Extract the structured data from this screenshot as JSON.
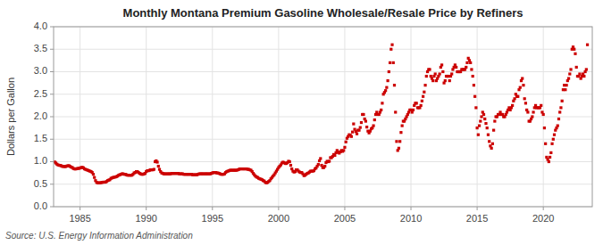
{
  "chart_data": {
    "type": "scatter",
    "title": "Monthly Montana Premium Gasoline Wholesale/Resale Price by Refiners",
    "y_label": "Dollars per Gallon",
    "annotations": [
      "Source: U.S. Energy Information Administration"
    ],
    "xlim": [
      1983.0,
      2023.7
    ],
    "ylim": [
      0.0,
      4.0
    ],
    "xticks": [
      1985,
      1990,
      1995,
      2000,
      2005,
      2010,
      2015,
      2020
    ],
    "yticks": [
      {
        "value": 0.0,
        "label": "0.0"
      },
      0.5,
      {
        "value": 1.0,
        "label": "1.0"
      },
      1.5,
      {
        "value": 2.0,
        "label": "2.0"
      },
      2.5,
      {
        "value": 3.0,
        "label": "3.0"
      },
      3.5,
      {
        "value": 4.0,
        "label": "4.0"
      }
    ],
    "grid": true,
    "color": "#cc0000",
    "marker": "square",
    "x": [
      1983.083,
      1983.167,
      1983.25,
      1983.333,
      1983.417,
      1983.5,
      1983.583,
      1983.667,
      1983.75,
      1983.833,
      1983.917,
      1984.0,
      1984.083,
      1984.167,
      1984.25,
      1984.333,
      1984.417,
      1984.5,
      1984.583,
      1984.667,
      1984.75,
      1984.833,
      1984.917,
      1985.0,
      1985.083,
      1985.167,
      1985.25,
      1985.333,
      1985.417,
      1985.5,
      1985.583,
      1985.667,
      1985.75,
      1985.833,
      1985.917,
      1986.0,
      1986.083,
      1986.167,
      1986.25,
      1986.333,
      1986.417,
      1986.5,
      1986.583,
      1986.667,
      1986.75,
      1986.833,
      1986.917,
      1987.0,
      1987.083,
      1987.167,
      1987.25,
      1987.333,
      1987.417,
      1987.5,
      1987.583,
      1987.667,
      1987.75,
      1987.833,
      1987.917,
      1988.0,
      1988.083,
      1988.167,
      1988.25,
      1988.333,
      1988.417,
      1988.5,
      1988.583,
      1988.667,
      1988.75,
      1988.833,
      1988.917,
      1989.0,
      1989.083,
      1989.167,
      1989.25,
      1989.333,
      1989.417,
      1989.5,
      1989.583,
      1989.667,
      1989.75,
      1989.833,
      1989.917,
      1990.0,
      1990.083,
      1990.167,
      1990.25,
      1990.333,
      1990.417,
      1990.5,
      1990.583,
      1990.667,
      1990.75,
      1990.833,
      1990.917,
      1991.0,
      1991.083,
      1991.167,
      1991.25,
      1991.333,
      1991.417,
      1991.5,
      1991.583,
      1991.667,
      1991.75,
      1991.833,
      1991.917,
      1992.0,
      1992.083,
      1992.167,
      1992.25,
      1992.333,
      1992.417,
      1992.5,
      1992.583,
      1992.667,
      1992.75,
      1992.833,
      1992.917,
      1993.0,
      1993.083,
      1993.167,
      1993.25,
      1993.333,
      1993.417,
      1993.5,
      1993.583,
      1993.667,
      1993.75,
      1993.833,
      1993.917,
      1994.0,
      1994.083,
      1994.167,
      1994.25,
      1994.333,
      1994.417,
      1994.5,
      1994.583,
      1994.667,
      1994.75,
      1994.833,
      1994.917,
      1995.0,
      1995.083,
      1995.167,
      1995.25,
      1995.333,
      1995.417,
      1995.5,
      1995.583,
      1995.667,
      1995.75,
      1995.833,
      1995.917,
      1996.0,
      1996.083,
      1996.167,
      1996.25,
      1996.333,
      1996.417,
      1996.5,
      1996.583,
      1996.667,
      1996.75,
      1996.833,
      1996.917,
      1997.0,
      1997.083,
      1997.167,
      1997.25,
      1997.333,
      1997.417,
      1997.5,
      1997.583,
      1997.667,
      1997.75,
      1997.833,
      1997.917,
      1998.0,
      1998.083,
      1998.167,
      1998.25,
      1998.333,
      1998.417,
      1998.5,
      1998.583,
      1998.667,
      1998.75,
      1998.833,
      1998.917,
      1999.0,
      1999.083,
      1999.167,
      1999.25,
      1999.333,
      1999.417,
      1999.5,
      1999.583,
      1999.667,
      1999.75,
      1999.833,
      1999.917,
      2000.0,
      2000.083,
      2000.167,
      2000.25,
      2000.333,
      2000.417,
      2000.5,
      2000.583,
      2000.667,
      2000.75,
      2000.833,
      2000.917,
      2001.0,
      2001.083,
      2001.167,
      2001.25,
      2001.333,
      2001.417,
      2001.5,
      2001.583,
      2001.667,
      2001.75,
      2001.833,
      2001.917,
      2002.0,
      2002.083,
      2002.167,
      2002.25,
      2002.333,
      2002.417,
      2002.5,
      2002.583,
      2002.667,
      2002.75,
      2002.833,
      2002.917,
      2003.0,
      2003.083,
      2003.167,
      2003.25,
      2003.333,
      2003.417,
      2003.5,
      2003.583,
      2003.667,
      2003.75,
      2003.833,
      2003.917,
      2004.0,
      2004.083,
      2004.167,
      2004.25,
      2004.333,
      2004.417,
      2004.5,
      2004.583,
      2004.667,
      2004.75,
      2004.833,
      2004.917,
      2005.0,
      2005.083,
      2005.167,
      2005.25,
      2005.333,
      2005.417,
      2005.5,
      2005.583,
      2005.667,
      2005.75,
      2005.833,
      2005.917,
      2006.0,
      2006.083,
      2006.167,
      2006.25,
      2006.333,
      2006.417,
      2006.5,
      2006.583,
      2006.667,
      2006.75,
      2006.833,
      2006.917,
      2007.0,
      2007.083,
      2007.167,
      2007.25,
      2007.333,
      2007.417,
      2007.5,
      2007.583,
      2007.667,
      2007.75,
      2007.833,
      2007.917,
      2008.0,
      2008.083,
      2008.167,
      2008.25,
      2008.333,
      2008.417,
      2008.5,
      2008.583,
      2008.667,
      2008.75,
      2008.833,
      2008.917,
      2009.0,
      2009.083,
      2009.167,
      2009.25,
      2009.333,
      2009.417,
      2009.5,
      2009.583,
      2009.667,
      2009.75,
      2009.833,
      2009.917,
      2010.0,
      2010.083,
      2010.167,
      2010.25,
      2010.333,
      2010.417,
      2010.5,
      2010.583,
      2010.667,
      2010.75,
      2010.833,
      2010.917,
      2011.0,
      2011.083,
      2011.167,
      2011.25,
      2011.333,
      2011.417,
      2011.5,
      2011.583,
      2011.667,
      2011.75,
      2011.833,
      2011.917,
      2012.0,
      2012.083,
      2012.167,
      2012.25,
      2012.333,
      2012.417,
      2012.5,
      2012.583,
      2012.667,
      2012.75,
      2012.833,
      2012.917,
      2013.0,
      2013.083,
      2013.167,
      2013.25,
      2013.333,
      2013.417,
      2013.5,
      2013.583,
      2013.667,
      2013.75,
      2013.833,
      2013.917,
      2014.0,
      2014.083,
      2014.167,
      2014.25,
      2014.333,
      2014.417,
      2014.5,
      2014.583,
      2014.667,
      2014.75,
      2014.833,
      2014.917,
      2015.0,
      2015.083,
      2015.167,
      2015.25,
      2015.333,
      2015.417,
      2015.5,
      2015.583,
      2015.667,
      2015.75,
      2015.833,
      2015.917,
      2016.0,
      2016.083,
      2016.167,
      2016.25,
      2016.333,
      2016.417,
      2016.5,
      2016.583,
      2016.667,
      2016.75,
      2016.833,
      2016.917,
      2017.0,
      2017.083,
      2017.167,
      2017.25,
      2017.333,
      2017.417,
      2017.5,
      2017.583,
      2017.667,
      2017.75,
      2017.833,
      2017.917,
      2018.0,
      2018.083,
      2018.167,
      2018.25,
      2018.333,
      2018.417,
      2018.5,
      2018.583,
      2018.667,
      2018.75,
      2018.833,
      2018.917,
      2019.0,
      2019.083,
      2019.167,
      2019.25,
      2019.333,
      2019.417,
      2019.5,
      2019.583,
      2019.667,
      2019.75,
      2019.833,
      2019.917,
      2020.0,
      2020.083,
      2020.167,
      2020.25,
      2020.333,
      2020.417,
      2020.5,
      2020.583,
      2020.667,
      2020.75,
      2020.833,
      2020.917,
      2021.0,
      2021.083,
      2021.167,
      2021.25,
      2021.333,
      2021.417,
      2021.5,
      2021.583,
      2021.667,
      2021.75,
      2021.833,
      2021.917,
      2022.0,
      2022.083,
      2022.167,
      2022.25,
      2022.333,
      2022.417,
      2022.5,
      2022.583,
      2022.667,
      2022.75,
      2022.833,
      2022.917,
      2023.0,
      2023.083,
      2023.167,
      2023.25,
      2023.333
    ],
    "values": [
      0.994,
      0.971,
      0.946,
      0.929,
      0.92,
      0.917,
      0.91,
      0.895,
      0.895,
      0.893,
      0.892,
      0.903,
      0.91,
      0.91,
      0.895,
      0.88,
      0.87,
      0.848,
      0.84,
      0.838,
      0.845,
      0.85,
      0.853,
      0.86,
      0.87,
      0.875,
      0.865,
      0.84,
      0.83,
      0.82,
      0.81,
      0.8,
      0.79,
      0.78,
      0.76,
      0.72,
      0.65,
      0.58,
      0.54,
      0.53,
      0.53,
      0.53,
      0.535,
      0.54,
      0.545,
      0.545,
      0.545,
      0.56,
      0.58,
      0.59,
      0.6,
      0.63,
      0.64,
      0.65,
      0.655,
      0.66,
      0.67,
      0.68,
      0.7,
      0.71,
      0.72,
      0.73,
      0.73,
      0.72,
      0.72,
      0.71,
      0.7,
      0.7,
      0.7,
      0.7,
      0.7,
      0.72,
      0.75,
      0.76,
      0.78,
      0.78,
      0.76,
      0.74,
      0.73,
      0.72,
      0.72,
      0.73,
      0.74,
      0.78,
      0.8,
      0.8,
      0.81,
      0.82,
      0.82,
      0.82,
      0.83,
      1.0,
      1.02,
      0.99,
      0.9,
      0.83,
      0.78,
      0.75,
      0.74,
      0.73,
      0.73,
      0.73,
      0.73,
      0.73,
      0.73,
      0.73,
      0.74,
      0.74,
      0.74,
      0.74,
      0.74,
      0.74,
      0.74,
      0.73,
      0.73,
      0.73,
      0.73,
      0.72,
      0.72,
      0.72,
      0.72,
      0.72,
      0.72,
      0.72,
      0.72,
      0.71,
      0.71,
      0.71,
      0.71,
      0.71,
      0.72,
      0.73,
      0.73,
      0.73,
      0.73,
      0.73,
      0.73,
      0.73,
      0.73,
      0.73,
      0.73,
      0.73,
      0.74,
      0.75,
      0.76,
      0.76,
      0.76,
      0.75,
      0.75,
      0.74,
      0.73,
      0.72,
      0.72,
      0.72,
      0.73,
      0.76,
      0.78,
      0.79,
      0.8,
      0.81,
      0.81,
      0.81,
      0.81,
      0.81,
      0.81,
      0.81,
      0.82,
      0.83,
      0.84,
      0.84,
      0.84,
      0.84,
      0.84,
      0.84,
      0.84,
      0.83,
      0.83,
      0.82,
      0.81,
      0.78,
      0.74,
      0.71,
      0.68,
      0.66,
      0.65,
      0.63,
      0.62,
      0.61,
      0.6,
      0.58,
      0.57,
      0.54,
      0.53,
      0.54,
      0.56,
      0.58,
      0.62,
      0.65,
      0.68,
      0.71,
      0.75,
      0.79,
      0.83,
      0.87,
      0.9,
      0.93,
      0.97,
      0.99,
      0.98,
      0.96,
      0.96,
      0.98,
      1.01,
      1.0,
      0.92,
      0.84,
      0.79,
      0.77,
      0.78,
      0.82,
      0.82,
      0.79,
      0.77,
      0.76,
      0.76,
      0.73,
      0.69,
      0.7,
      0.72,
      0.74,
      0.75,
      0.77,
      0.79,
      0.79,
      0.79,
      0.8,
      0.84,
      0.86,
      0.9,
      0.94,
      1.02,
      1.07,
      0.92,
      0.87,
      0.87,
      0.9,
      0.98,
      1.01,
      1.0,
      1.01,
      1.09,
      1.09,
      1.12,
      1.16,
      1.14,
      1.2,
      1.25,
      1.21,
      1.19,
      1.22,
      1.25,
      1.23,
      1.25,
      1.32,
      1.44,
      1.52,
      1.56,
      1.6,
      1.59,
      1.56,
      1.66,
      1.84,
      1.72,
      1.67,
      1.62,
      1.7,
      1.7,
      1.76,
      1.87,
      2.05,
      2.05,
      1.95,
      1.9,
      1.77,
      1.68,
      1.64,
      1.68,
      1.73,
      1.75,
      1.8,
      1.93,
      2.05,
      2.1,
      2.05,
      2.05,
      2.1,
      2.15,
      2.3,
      2.5,
      2.54,
      2.58,
      2.65,
      2.8,
      3.0,
      3.2,
      3.5,
      3.6,
      3.2,
      2.7,
      2.1,
      1.45,
      1.25,
      1.3,
      1.45,
      1.65,
      1.8,
      1.9,
      1.9,
      1.95,
      2.0,
      2.05,
      2.1,
      2.15,
      2.15,
      2.1,
      2.15,
      2.25,
      2.3,
      2.3,
      2.2,
      2.2,
      2.2,
      2.25,
      2.35,
      2.45,
      2.55,
      2.7,
      2.9,
      3.0,
      3.05,
      3.05,
      2.9,
      2.85,
      2.8,
      2.9,
      2.95,
      2.8,
      2.85,
      2.9,
      2.95,
      3.1,
      3.15,
      3.0,
      2.75,
      2.8,
      2.9,
      2.9,
      2.9,
      2.8,
      2.9,
      2.95,
      3.05,
      3.1,
      3.15,
      3.1,
      3.0,
      3.0,
      3.0,
      3.0,
      3.05,
      3.05,
      3.05,
      3.05,
      3.1,
      3.2,
      3.3,
      3.25,
      3.2,
      3.05,
      2.9,
      2.7,
      2.45,
      2.2,
      1.75,
      1.6,
      1.8,
      1.9,
      2.0,
      2.1,
      2.05,
      1.95,
      1.85,
      1.75,
      1.6,
      1.45,
      1.35,
      1.3,
      1.4,
      1.7,
      1.9,
      2.0,
      2.0,
      2.05,
      2.05,
      2.1,
      2.05,
      2.05,
      2.0,
      2.0,
      2.05,
      2.1,
      2.15,
      2.2,
      2.15,
      2.2,
      2.25,
      2.35,
      2.4,
      2.5,
      2.45,
      2.45,
      2.6,
      2.65,
      2.8,
      2.85,
      2.7,
      2.4,
      2.3,
      2.15,
      2.1,
      1.9,
      1.9,
      1.95,
      2.0,
      2.1,
      2.2,
      2.25,
      2.2,
      2.2,
      2.2,
      2.2,
      2.25,
      2.1,
      2.05,
      1.75,
      1.4,
      1.1,
      1.05,
      1.0,
      1.1,
      1.2,
      1.4,
      1.5,
      1.6,
      1.7,
      1.75,
      1.8,
      1.95,
      2.1,
      2.2,
      2.35,
      2.6,
      2.7,
      2.6,
      2.7,
      2.8,
      2.85,
      2.95,
      3.05,
      3.5,
      3.55,
      3.5,
      3.4,
      3.1,
      2.9,
      2.9,
      2.95,
      2.85,
      2.9,
      2.95,
      2.9,
      3.0,
      3.05,
      3.6
    ]
  }
}
